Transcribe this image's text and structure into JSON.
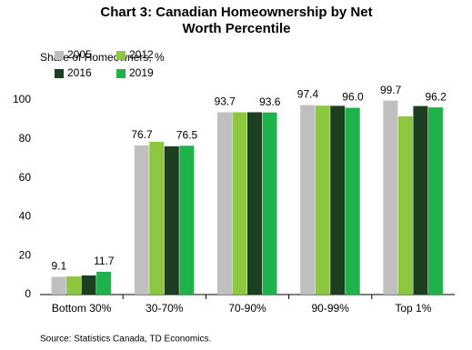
{
  "chart_data": {
    "type": "bar",
    "title": "Chart 3: Canadian Homeownership  by Net Worth Percentile",
    "y_label": "Share of Homeowners, %",
    "source": "Source:  Statistics Canada,  TD Economics.",
    "categories": [
      "Bottom 30%",
      "30-70%",
      "70-90%",
      "90-99%",
      "Top 1%"
    ],
    "series": [
      {
        "name": "2005",
        "color": "#bfbfbf",
        "values": [
          9.1,
          76.7,
          93.7,
          97.4,
          99.7
        ],
        "value_labels": [
          "9.1",
          "76.7",
          "93.7",
          "97.4",
          "99.7"
        ]
      },
      {
        "name": "2012",
        "color": "#8dc63f",
        "values": [
          9.3,
          78.5,
          93.7,
          97.1,
          91.6
        ]
      },
      {
        "name": "2016",
        "color": "#1c3f1f",
        "values": [
          9.8,
          76.2,
          93.7,
          97.0,
          96.9
        ]
      },
      {
        "name": "2019",
        "color": "#1db34a",
        "values": [
          11.7,
          76.5,
          93.6,
          96.0,
          96.2
        ],
        "value_labels": [
          "11.7",
          "76.5",
          "93.6",
          "96.0",
          "96.2"
        ]
      }
    ],
    "ylim": [
      0,
      110
    ],
    "yticks": [
      0,
      20,
      40,
      60,
      80,
      100
    ],
    "legend": "top-left"
  }
}
